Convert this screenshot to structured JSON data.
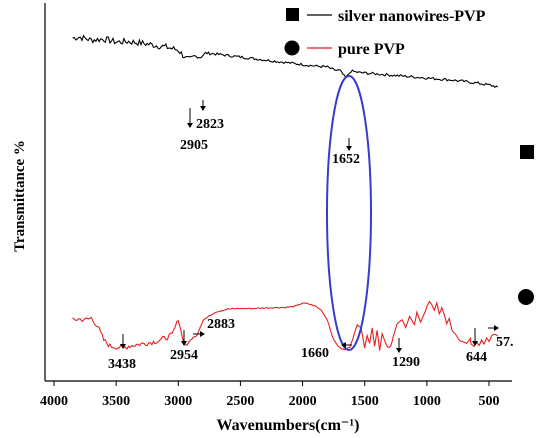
{
  "chart_data": {
    "type": "line",
    "title": "",
    "xlabel": "Wavenumbers(cm⁻¹)",
    "ylabel": "Transmittance %",
    "xlim": [
      4000,
      400
    ],
    "x_reversed": true,
    "grid": false,
    "legend_position": "top-right",
    "x_ticks": [
      4000,
      3500,
      3000,
      2500,
      2000,
      1500,
      1000,
      500
    ],
    "x_tick_labels": [
      "4000",
      "3500",
      "3000",
      "2500",
      "2000",
      "1500",
      "1000",
      "500"
    ],
    "series": [
      {
        "name": "silver nanowires-PVP",
        "color": "#000000",
        "marker": "square",
        "x": [
          3850,
          3800,
          3700,
          3600,
          3500,
          3400,
          3300,
          3200,
          3100,
          3000,
          2950,
          2905,
          2870,
          2823,
          2780,
          2700,
          2600,
          2500,
          2400,
          2300,
          2200,
          2100,
          2000,
          1900,
          1800,
          1750,
          1700,
          1652,
          1610,
          1550,
          1500,
          1400,
          1300,
          1200,
          1100,
          1000,
          900,
          800,
          700,
          600,
          500,
          430
        ],
        "y": [
          62,
          63,
          60,
          61,
          58,
          58.5,
          57,
          55,
          53,
          50,
          43,
          42,
          44,
          42.5,
          47,
          46,
          44.5,
          43,
          41.5,
          40,
          38.5,
          37,
          35.5,
          34,
          33,
          30,
          29.5,
          22,
          29,
          27.5,
          27,
          26,
          25,
          24,
          23,
          22,
          21,
          20,
          18.5,
          17,
          15,
          13
        ]
      },
      {
        "name": "pure PVP",
        "color": "#e62020",
        "marker": "circle",
        "x": [
          3850,
          3800,
          3750,
          3700,
          3650,
          3600,
          3550,
          3500,
          3438,
          3400,
          3300,
          3200,
          3100,
          3050,
          3000,
          2980,
          2954,
          2930,
          2900,
          2883,
          2850,
          2800,
          2700,
          2600,
          2500,
          2400,
          2300,
          2200,
          2150,
          2100,
          2050,
          2000,
          1950,
          1900,
          1850,
          1800,
          1750,
          1700,
          1660,
          1620,
          1560,
          1530,
          1500,
          1480,
          1460,
          1440,
          1420,
          1400,
          1380,
          1360,
          1330,
          1310,
          1290,
          1270,
          1240,
          1200,
          1170,
          1140,
          1100,
          1080,
          1050,
          1020,
          1000,
          980,
          960,
          940,
          920,
          900,
          880,
          860,
          840,
          820,
          800,
          770,
          740,
          700,
          680,
          650,
          644,
          620,
          600,
          580,
          560,
          540,
          520,
          500,
          480,
          460,
          430
        ],
        "y": [
          -20,
          -19,
          -20,
          -18,
          -26,
          -40,
          -46,
          -47,
          -48,
          -46,
          -44,
          -42,
          -38,
          -35,
          -20,
          -30,
          -44,
          -45,
          -40,
          -38,
          -35,
          -20,
          -12,
          -9,
          -8.5,
          -8.5,
          -8,
          -7.5,
          -7.5,
          -7,
          -6,
          -3,
          -4,
          -6,
          -10,
          -20,
          -40,
          -48,
          -50,
          -47,
          -25,
          -27,
          -48,
          -35,
          -43,
          -28,
          -46,
          -30,
          -50,
          -34,
          -44,
          -48,
          -46,
          -36,
          -24,
          -20,
          -28,
          -16,
          -25,
          -12,
          -22,
          -14,
          -6,
          -2,
          -5,
          -10,
          -3,
          -14,
          -8,
          -15,
          -24,
          -18,
          -30,
          -34,
          -40,
          -42,
          -43,
          -38,
          -44,
          -46,
          -42,
          -45,
          -40,
          -44,
          -38,
          -42,
          -36,
          -34,
          -36
        ]
      }
    ],
    "annotations": [
      {
        "text": "2905",
        "series": "silver nanowires-PVP",
        "x": 2905
      },
      {
        "text": "2823",
        "series": "silver nanowires-PVP",
        "x": 2823
      },
      {
        "text": "1652",
        "series": "silver nanowires-PVP",
        "x": 1652
      },
      {
        "text": "3438",
        "series": "pure PVP",
        "x": 3438
      },
      {
        "text": "2954",
        "series": "pure PVP",
        "x": 2954
      },
      {
        "text": "2883",
        "series": "pure PVP",
        "x": 2883
      },
      {
        "text": "1660",
        "series": "pure PVP",
        "x": 1660
      },
      {
        "text": "1290",
        "series": "pure PVP",
        "x": 1290
      },
      {
        "text": "644",
        "series": "pure PVP",
        "x": 644
      },
      {
        "text": "57.",
        "series": "pure PVP",
        "x": 570
      }
    ],
    "highlight": {
      "shape": "ellipse",
      "color": "#3a3acc",
      "x_center": 1650
    }
  }
}
